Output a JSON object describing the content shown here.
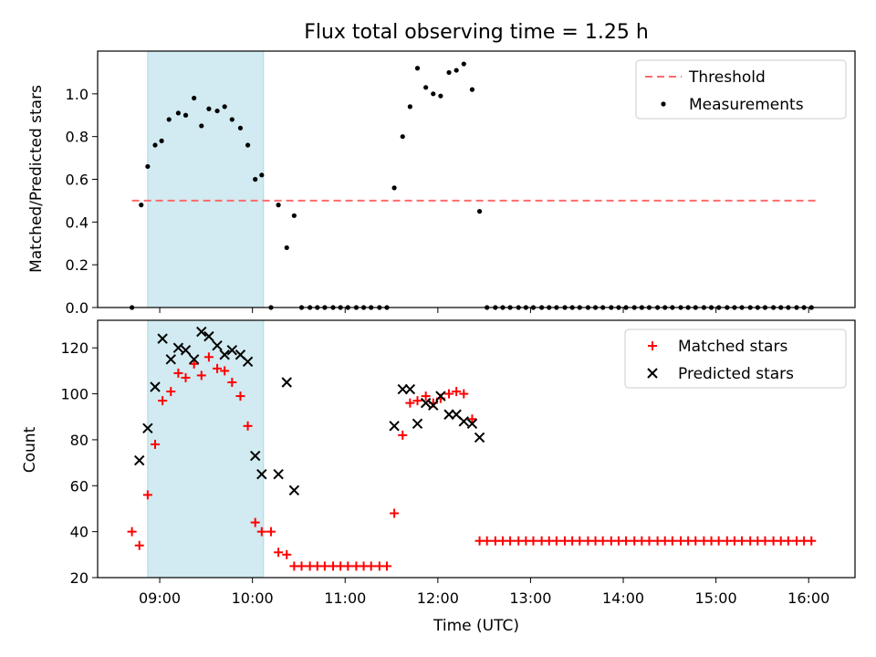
{
  "title": "Flux total observing time = 1.25 h",
  "colors": {
    "threshold": "#ff6b6b",
    "measurement": "#000000",
    "matched": "#ff0000",
    "predicted": "#000000",
    "highlight": "#add8e6"
  },
  "chart_data": [
    {
      "type": "scatter",
      "panel": "top",
      "ylabel": "Matched/Predicted stars",
      "xlabel": "",
      "xlim": [
        8.33,
        16.5
      ],
      "ylim": [
        0,
        1.2
      ],
      "yticks": [
        0.0,
        0.2,
        0.4,
        0.6,
        0.8,
        1.0
      ],
      "ytick_labels": [
        "0.0",
        "0.2",
        "0.4",
        "0.6",
        "0.8",
        "1.0"
      ],
      "highlight_span": [
        8.87,
        10.12
      ],
      "legend": {
        "position": "top-right",
        "entries": [
          "Threshold",
          "Measurements"
        ]
      },
      "threshold": {
        "name": "Threshold",
        "value": 0.5,
        "x_range": [
          8.7,
          16.1
        ],
        "style": "dashed"
      },
      "series": [
        {
          "name": "Measurements",
          "marker": "dot",
          "x": [
            8.7,
            8.8,
            8.87,
            8.95,
            9.02,
            9.1,
            9.2,
            9.28,
            9.37,
            9.45,
            9.53,
            9.62,
            9.7,
            9.78,
            9.87,
            9.95,
            10.03,
            10.1,
            10.2,
            10.28,
            10.37,
            10.45,
            10.53,
            10.62,
            10.7,
            10.78,
            10.87,
            10.95,
            11.03,
            11.12,
            11.2,
            11.28,
            11.37,
            11.45,
            11.53,
            11.62,
            11.7,
            11.78,
            11.87,
            11.95,
            12.03,
            12.12,
            12.2,
            12.28,
            12.37,
            12.45,
            12.53,
            12.62,
            12.7,
            12.78,
            12.87,
            12.95,
            13.03,
            13.12,
            13.2,
            13.28,
            13.37,
            13.45,
            13.53,
            13.62,
            13.7,
            13.78,
            13.87,
            13.95,
            14.03,
            14.12,
            14.2,
            14.28,
            14.37,
            14.45,
            14.53,
            14.62,
            14.7,
            14.78,
            14.87,
            14.95,
            15.03,
            15.12,
            15.2,
            15.28,
            15.37,
            15.45,
            15.53,
            15.62,
            15.7,
            15.78,
            15.87,
            15.95,
            16.03
          ],
          "y": [
            0,
            0.48,
            0.66,
            0.76,
            0.78,
            0.88,
            0.91,
            0.9,
            0.98,
            0.85,
            0.93,
            0.92,
            0.94,
            0.88,
            0.84,
            0.76,
            0.6,
            0.62,
            0,
            0.48,
            0.28,
            0.43,
            0,
            0,
            0,
            0,
            0,
            0,
            0,
            0,
            0,
            0,
            0,
            0,
            0.56,
            0.8,
            0.94,
            1.12,
            1.03,
            1.0,
            0.99,
            1.1,
            1.11,
            1.14,
            1.02,
            0.45,
            0,
            0,
            0,
            0,
            0,
            0,
            0,
            0,
            0,
            0,
            0,
            0,
            0,
            0,
            0,
            0,
            0,
            0,
            0,
            0,
            0,
            0,
            0,
            0,
            0,
            0,
            0,
            0,
            0,
            0,
            0,
            0,
            0,
            0,
            0,
            0,
            0,
            0,
            0,
            0,
            0,
            0,
            0
          ]
        }
      ]
    },
    {
      "type": "scatter",
      "panel": "bottom",
      "ylabel": "Count",
      "xlabel": "Time (UTC)",
      "xlim": [
        8.33,
        16.5
      ],
      "ylim": [
        20,
        132
      ],
      "yticks": [
        20,
        40,
        60,
        80,
        100,
        120
      ],
      "ytick_labels": [
        "20",
        "40",
        "60",
        "80",
        "100",
        "120"
      ],
      "xticks": [
        9,
        10,
        11,
        12,
        13,
        14,
        15,
        16
      ],
      "xtick_labels": [
        "09:00",
        "10:00",
        "11:00",
        "12:00",
        "13:00",
        "14:00",
        "15:00",
        "16:00"
      ],
      "highlight_span": [
        8.87,
        10.12
      ],
      "legend": {
        "position": "top-right",
        "entries": [
          "Matched stars",
          "Predicted stars"
        ]
      },
      "series": [
        {
          "name": "Matched stars",
          "marker": "plus",
          "x": [
            8.7,
            8.78,
            8.87,
            8.95,
            9.03,
            9.12,
            9.2,
            9.28,
            9.37,
            9.45,
            9.53,
            9.62,
            9.7,
            9.78,
            9.87,
            9.95,
            10.03,
            10.1,
            10.2,
            10.28,
            10.37,
            10.45,
            10.53,
            10.62,
            10.7,
            10.78,
            10.87,
            10.95,
            11.03,
            11.12,
            11.2,
            11.28,
            11.37,
            11.45,
            11.53,
            11.62,
            11.7,
            11.78,
            11.87,
            11.95,
            12.03,
            12.12,
            12.2,
            12.28,
            12.37,
            12.45,
            12.53,
            12.62,
            12.7,
            12.78,
            12.87,
            12.95,
            13.03,
            13.12,
            13.2,
            13.28,
            13.37,
            13.45,
            13.53,
            13.62,
            13.7,
            13.78,
            13.87,
            13.95,
            14.03,
            14.12,
            14.2,
            14.28,
            14.37,
            14.45,
            14.53,
            14.62,
            14.7,
            14.78,
            14.87,
            14.95,
            15.03,
            15.12,
            15.2,
            15.28,
            15.37,
            15.45,
            15.53,
            15.62,
            15.7,
            15.78,
            15.87,
            15.95,
            16.03
          ],
          "y": [
            40,
            34,
            56,
            78,
            97,
            101,
            109,
            107,
            113,
            108,
            116,
            111,
            110,
            105,
            99,
            86,
            44,
            40,
            40,
            31,
            30,
            25,
            25,
            25,
            25,
            25,
            25,
            25,
            25,
            25,
            25,
            25,
            25,
            25,
            48,
            82,
            96,
            97,
            99,
            96,
            98,
            100,
            101,
            100,
            89,
            36,
            36,
            36,
            36,
            36,
            36,
            36,
            36,
            36,
            36,
            36,
            36,
            36,
            36,
            36,
            36,
            36,
            36,
            36,
            36,
            36,
            36,
            36,
            36,
            36,
            36,
            36,
            36,
            36,
            36,
            36,
            36,
            36,
            36,
            36,
            36,
            36,
            36,
            36,
            36,
            36,
            36,
            36,
            36
          ]
        },
        {
          "name": "Predicted stars",
          "marker": "x",
          "x": [
            8.78,
            8.87,
            8.95,
            9.03,
            9.12,
            9.2,
            9.28,
            9.37,
            9.45,
            9.53,
            9.62,
            9.7,
            9.78,
            9.87,
            9.95,
            10.03,
            10.1,
            10.28,
            10.37,
            10.45,
            11.53,
            11.62,
            11.7,
            11.78,
            11.87,
            11.95,
            12.03,
            12.12,
            12.2,
            12.28,
            12.37,
            12.45
          ],
          "y": [
            71,
            85,
            103,
            124,
            115,
            120,
            119,
            115,
            127,
            125,
            121,
            117,
            119,
            117,
            114,
            73,
            65,
            65,
            105,
            58,
            86,
            102,
            102,
            87,
            96,
            95,
            99,
            91,
            91,
            88,
            87,
            81
          ]
        }
      ]
    }
  ]
}
